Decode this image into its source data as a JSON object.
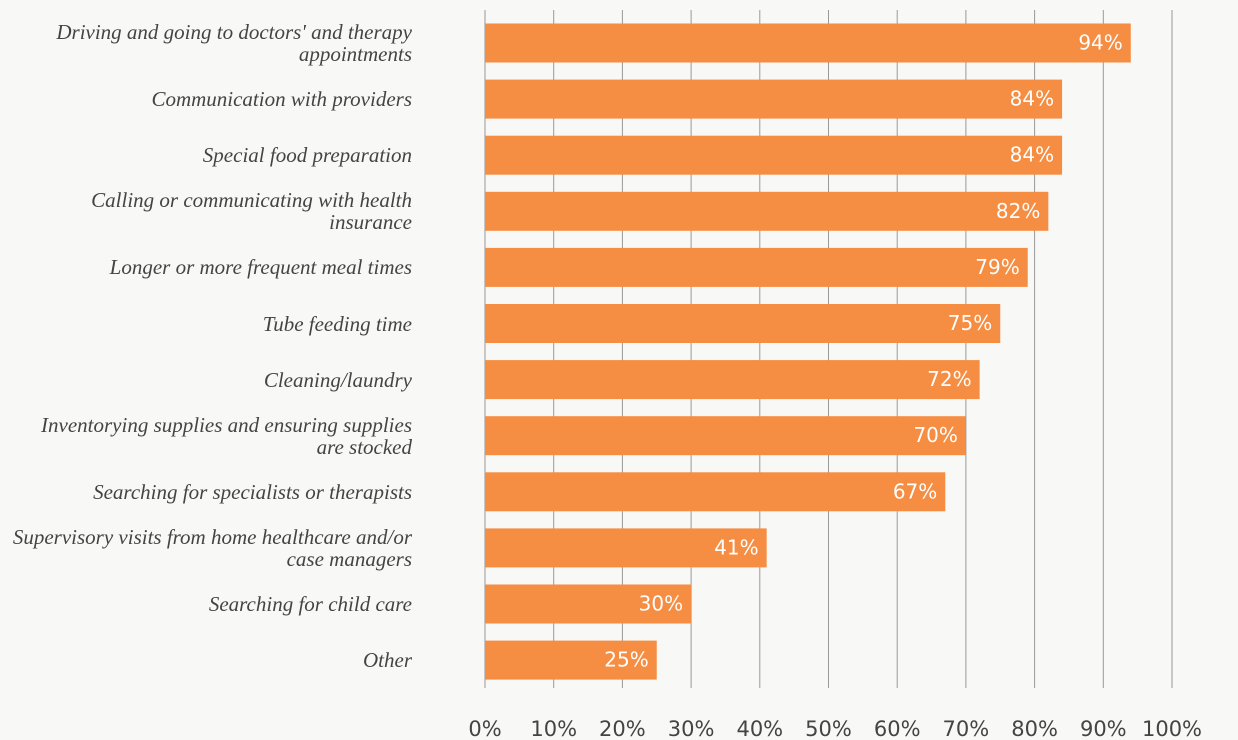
{
  "chart_data": {
    "type": "bar",
    "orientation": "horizontal",
    "categories": [
      "Driving and going to doctors' and therapy appointments",
      "Communication with providers",
      "Special food preparation",
      "Calling or communicating with health insurance",
      "Longer or more frequent meal times",
      "Tube feeding time",
      "Cleaning/laundry",
      "Inventorying supplies and ensuring supplies are stocked",
      "Searching for specialists or therapists",
      "Supervisory visits from home healthcare and/or case managers",
      "Searching for child care",
      "Other"
    ],
    "values": [
      94,
      84,
      84,
      82,
      79,
      75,
      72,
      70,
      67,
      41,
      30,
      25
    ],
    "value_labels": [
      "94%",
      "84%",
      "84%",
      "82%",
      "79%",
      "75%",
      "72%",
      "70%",
      "67%",
      "41%",
      "30%",
      "25%"
    ],
    "color": "#f58d42",
    "xlim": [
      0,
      100
    ],
    "xticks": [
      {
        "value": 0,
        "label": "0%"
      },
      {
        "value": 10,
        "label": "10%"
      },
      {
        "value": 20,
        "label": "20%"
      },
      {
        "value": 30,
        "label": "30%"
      },
      {
        "value": 40,
        "label": "40%"
      },
      {
        "value": 50,
        "label": "50%"
      },
      {
        "value": 60,
        "label": "60%"
      },
      {
        "value": 70,
        "label": "70%"
      },
      {
        "value": 80,
        "label": "80%"
      },
      {
        "value": 90,
        "label": "90%"
      },
      {
        "value": 100,
        "label": "100%"
      }
    ],
    "grid": true
  }
}
